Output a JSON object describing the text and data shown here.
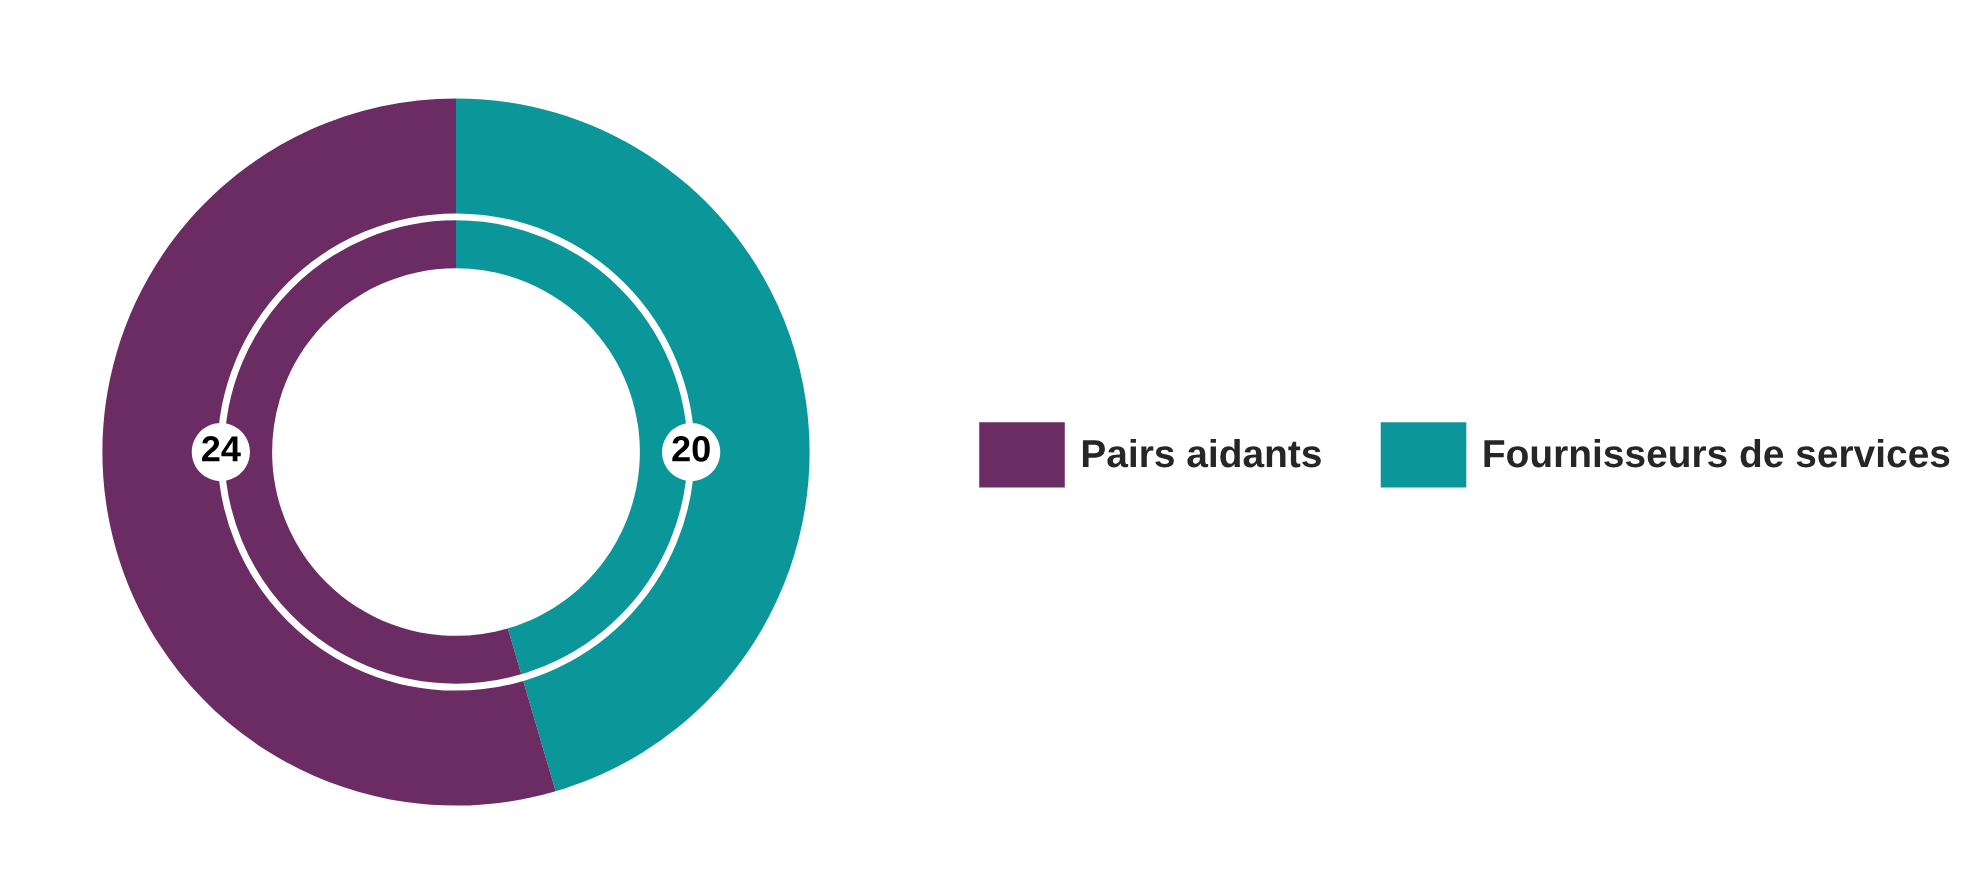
{
  "chart_data": {
    "type": "donut",
    "categories": [
      "Pairs aidants",
      "Fournisseurs de services"
    ],
    "values": [
      24,
      20
    ],
    "colors": [
      "#6a2c63",
      "#0b9699"
    ],
    "data_labels": true,
    "legend": "right"
  }
}
